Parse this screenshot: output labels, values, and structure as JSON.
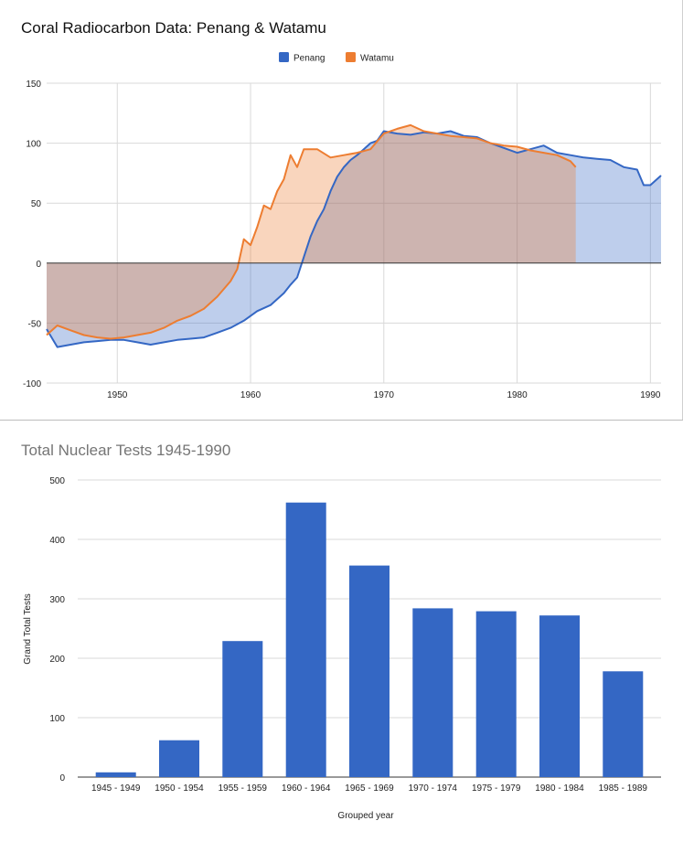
{
  "charts": [
    {
      "title": "Coral Radiocarbon Data: Penang & Watamu",
      "legend": [
        {
          "label": "Penang",
          "color": "#3467c4"
        },
        {
          "label": "Watamu",
          "color": "#ed7d31"
        }
      ]
    },
    {
      "title": "Total Nuclear Tests 1945-1990",
      "xlabel": "Grouped year",
      "ylabel": "Grand Total Tests"
    }
  ],
  "chart_data": [
    {
      "type": "area",
      "title": "Coral Radiocarbon Data: Penang & Watamu",
      "xlim": [
        1944.7,
        1990.8
      ],
      "ylim": [
        -100,
        150
      ],
      "x_ticks": [
        1950,
        1960,
        1970,
        1980,
        1990
      ],
      "y_ticks": [
        -100,
        -50,
        0,
        50,
        100,
        150
      ],
      "grid": true,
      "legend_position": "top-center",
      "series": [
        {
          "name": "Penang",
          "color": "#3467c4",
          "x": [
            1944.7,
            1945.5,
            1946.5,
            1947.5,
            1948.5,
            1949.5,
            1950.5,
            1951.5,
            1952.5,
            1953.5,
            1954.5,
            1955.5,
            1956.5,
            1957.5,
            1958.5,
            1959.5,
            1960.5,
            1961.5,
            1962.5,
            1963.0,
            1963.5,
            1964.0,
            1964.5,
            1965.0,
            1965.5,
            1966.0,
            1966.5,
            1967.0,
            1967.5,
            1968.0,
            1968.5,
            1969.0,
            1969.5,
            1970.0,
            1971.0,
            1972.0,
            1973.0,
            1974.0,
            1975.0,
            1976.0,
            1977.0,
            1978.0,
            1979.0,
            1980.0,
            1981.0,
            1982.0,
            1983.0,
            1984.0,
            1985.0,
            1986.0,
            1987.0,
            1988.0,
            1989.0,
            1989.5,
            1990.0,
            1990.8
          ],
          "y": [
            -55,
            -70,
            -68,
            -66,
            -65,
            -64,
            -64,
            -66,
            -68,
            -66,
            -64,
            -63,
            -62,
            -58,
            -54,
            -48,
            -40,
            -35,
            -25,
            -18,
            -12,
            5,
            22,
            35,
            45,
            60,
            72,
            80,
            86,
            90,
            95,
            100,
            102,
            110,
            108,
            107,
            109,
            108,
            110,
            106,
            105,
            100,
            96,
            92,
            95,
            98,
            92,
            90,
            88,
            87,
            86,
            80,
            78,
            65,
            65,
            73
          ]
        },
        {
          "name": "Watamu",
          "color": "#ed7d31",
          "x": [
            1944.7,
            1945.5,
            1946.5,
            1947.5,
            1948.5,
            1949.5,
            1950.5,
            1951.5,
            1952.5,
            1953.5,
            1954.5,
            1955.5,
            1956.5,
            1957.5,
            1958.5,
            1959.0,
            1959.5,
            1960.0,
            1960.5,
            1961.0,
            1961.5,
            1962.0,
            1962.5,
            1963.0,
            1963.5,
            1964.0,
            1965.0,
            1966.0,
            1967.0,
            1968.0,
            1969.0,
            1970.0,
            1971.0,
            1972.0,
            1973.0,
            1974.0,
            1975.0,
            1976.0,
            1977.0,
            1978.0,
            1979.0,
            1980.0,
            1981.0,
            1982.0,
            1983.0,
            1984.0,
            1984.4
          ],
          "y": [
            -60,
            -52,
            -56,
            -60,
            -62,
            -63,
            -62,
            -60,
            -58,
            -54,
            -48,
            -44,
            -38,
            -28,
            -15,
            -5,
            20,
            15,
            30,
            48,
            45,
            60,
            70,
            90,
            80,
            95,
            95,
            88,
            90,
            92,
            95,
            108,
            112,
            115,
            110,
            108,
            106,
            105,
            104,
            100,
            98,
            97,
            94,
            92,
            90,
            85,
            80
          ]
        }
      ]
    },
    {
      "type": "bar",
      "title": "Total Nuclear Tests 1945-1990",
      "xlabel": "Grouped year",
      "ylabel": "Grand Total Tests",
      "ylim": [
        0,
        500
      ],
      "y_ticks": [
        0,
        100,
        200,
        300,
        400,
        500
      ],
      "grid": true,
      "categories": [
        "1945 - 1949",
        "1950 - 1954",
        "1955 - 1959",
        "1960 - 1964",
        "1965 - 1969",
        "1970 - 1974",
        "1975 - 1979",
        "1980 - 1984",
        "1985 - 1989"
      ],
      "series": [
        {
          "color": "#3467c4",
          "values": [
            8,
            62,
            229,
            462,
            356,
            284,
            279,
            272,
            178
          ]
        }
      ]
    }
  ]
}
